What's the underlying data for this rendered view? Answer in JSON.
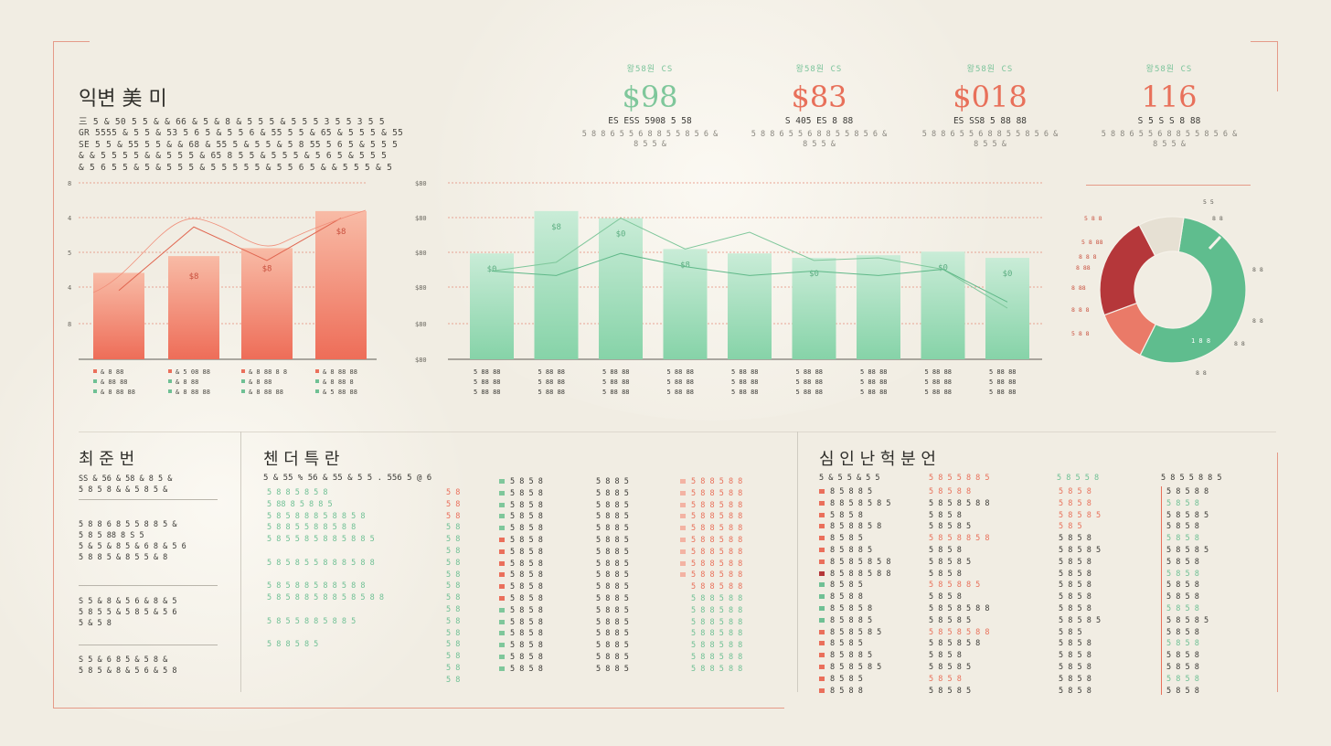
{
  "colors": {
    "red": "#ea6f5b",
    "green": "#8fd6b1",
    "accent_red_text": "#e8705a",
    "accent_green_text": "#7fc79b",
    "background": "#f1ede3"
  },
  "header": {
    "title": "익변 美 미",
    "intro_lines": [
      "三 5 & 50 5 5 & & 66 & 5 & 8 & 5 5 5 & 5 5 5 3 5 5 3 5 5",
      "GR 5555 & 5 5 & 53 5 6 5 & 5 5 6 & 55 5 5 & 65 & 5 5 5 & 55",
      "SE 5 5 & 55 5 5 & & 68 & 55 5 & 5 5 & 5 8 55 5 6 5 & 5 5 5",
      "& & 5 5 5 5 & & 5 5 5 & 65 8 5 5 & 5 5 5 & 5 6 5 & 5 5 5",
      "& 5 6 5 5 & 5 & 5 5 5 & 5 5 5 5 5 & 5 5 6 5 & & 5 5 5 & 5"
    ]
  },
  "kpis": [
    {
      "caption": "왕58원 CS",
      "value": "$98",
      "sub1": "ES ESS 5908 5 58",
      "sub2": "5 8 8 6 5 5 6 8 8 5 5 8 5 6 & 8 5 5 &",
      "color": "#7fc79b"
    },
    {
      "caption": "왕58원 CS",
      "value": "$83",
      "sub1": "S 405 ES 8 88",
      "sub2": "5 8 8 6 5 5 6 8 8 5 5 8 5 6 & 8 5 5 &",
      "color": "#e8705a"
    },
    {
      "caption": "왕58원 CS",
      "value": "$018",
      "sub1": "ES SS8 5 88 88",
      "sub2": "5 8 8 6 5 5 6 8 8 5 5 8 5 6 & 8 5 5 &",
      "color": "#e8705a"
    },
    {
      "caption": "왕58원 CS",
      "value": "116",
      "sub1": "S 5 S S 8 88",
      "sub2": "5 8 8 6 5 5 6 8 8 5 5 8 5 6 & 8 5 5 &",
      "color": "#e8705a"
    }
  ],
  "chart_data": [
    {
      "type": "bar",
      "categories": [
        "",
        "",
        "",
        ""
      ],
      "values": [
        98,
        117,
        126,
        168
      ],
      "line": [
        78,
        150,
        112,
        160
      ],
      "bar_labels": [
        "",
        "$8",
        "$8",
        "$8"
      ],
      "tick_labels": [
        "8",
        "4",
        "5",
        "4",
        "8"
      ],
      "legend": [
        [
          "& 8 88",
          "& 5 08 88",
          "& 8 88 8 8",
          "& 8 88 88"
        ],
        [
          "& 88 88",
          "& 8 88",
          "& 8 88",
          "& 8 88 8"
        ],
        [
          "& 8 88 88",
          "& 8 88 88",
          "& 8 88 88",
          "& 5 88 88"
        ]
      ]
    },
    {
      "type": "bar",
      "categories": [
        "",
        "",
        "",
        "",
        "",
        "",
        "",
        "",
        ""
      ],
      "values": [
        120,
        168,
        160,
        125,
        120,
        115,
        118,
        122,
        115
      ],
      "line_upper": [
        100,
        110,
        160,
        125,
        144,
        112,
        115,
        102,
        58
      ],
      "line_lower": [
        100,
        95,
        120,
        105,
        95,
        100,
        95,
        102,
        65
      ],
      "bar_labels": [
        "$0",
        "$8",
        "$0",
        "$8",
        "",
        "$0",
        "",
        "$0",
        "$0"
      ],
      "tick_labels": [
        "$80",
        "$80",
        "$80",
        "$80",
        "$80",
        "$80"
      ],
      "legend": [
        [
          "5 88 88",
          "5 88 88",
          "5 88 88",
          "5 88 88",
          "5 88 88",
          "5 88 88",
          "5 88 88",
          "5 88 88",
          "5 88 88"
        ],
        [
          "5 88 88",
          "5 88 88",
          "5 88 88",
          "5 88 88",
          "5 88 88",
          "5 88 88",
          "5 88 88",
          "5 88 88",
          "5 88 88"
        ],
        [
          "5 88 88",
          "5 88 88",
          "5 88 88",
          "5 88 88",
          "5 88 88",
          "5 88 88",
          "5 88 88",
          "5 88 88",
          "5 88 88"
        ]
      ]
    },
    {
      "type": "pie",
      "slices": [
        {
          "label": "Green",
          "value": 55,
          "color": "#5fbd8e"
        },
        {
          "label": "Light Red",
          "value": 12,
          "color": "#ea7a68"
        },
        {
          "label": "Dark Red",
          "value": 23,
          "color": "#b5373a"
        },
        {
          "label": "Pale",
          "value": 10,
          "color": "#e6e0d3"
        }
      ],
      "labels_left": [
        "5 8 8",
        "5 8 88",
        "8 8 8",
        "8 88",
        "8 88",
        "8 8 8",
        "5 8 8"
      ],
      "labels_right": [
        "5 5",
        "8 8",
        "8 8",
        "8 8",
        "8 8",
        "8 8"
      ]
    }
  ],
  "sections": {
    "left_title": "최 준 번",
    "middle_title": "첸 더 특 란",
    "right_title": "심 인 난 헉 분 언",
    "side_blocks": [
      [
        "SS & 56 & 58 & 8 5 &",
        "5 8 5 8 & & 5 8 5 &"
      ],
      [
        "5 8 8 6 8 5 5 8 8 5 &",
        "5 8 5 88 8 S 5",
        "5 & 5 & 8 5 & 6 8 & 5 6",
        "5 8 8 5 & 8 5 5 & 8"
      ],
      [
        "S 5 & 8 & 5 6 & 8 & 5",
        "5 8 5 5 & 5 8 5 & 5 6",
        "5 & 5 8"
      ],
      [
        "S 5 & 6 8 5 & 5 8 &",
        "5 8 5 & 8 & 5 6 & 5 8"
      ]
    ],
    "middle_header": "5 & 55 % 56 & 55 & 5 5 . 556 5 @ 6",
    "middle_col1": [
      "5 8 8 5 8 5 8",
      "5 88 8 5 8 8 5",
      "5 8 5 8 8 8 5 8 8 5 8",
      "5 8 8 5 5 8 8 5 8 8",
      "5 8 5 5 8 5 8 8 5 8 8 5",
      "",
      "5 8 5 8 5 5 8 8 8 5 8 8",
      "",
      "5 8 5 8 8 5 8 8 5 8 8",
      "5 8 5 8 8 5 8 8 5 8 5 8 8",
      "",
      "5 8 5 5 8 8 5 8 8 5",
      "",
      "5 8 8 5 8 5"
    ],
    "middle_col2": [
      "5 8",
      "5 8",
      "5 8",
      "5 8",
      "5 8",
      "5 8",
      "5 8",
      "5 8",
      "5 8",
      "5 8",
      "5 8",
      "5 8",
      "5 8",
      "5 8",
      "5 8",
      "5 8",
      "5 8"
    ],
    "middle_col3": [
      "5 8 5 8",
      "5 8 5 8",
      "5 8 5 8",
      "5 8 5 8",
      "5 8 5 8",
      "5 8 5 8",
      "5 8 5 8",
      "5 8 5 8",
      "5 8 5 8",
      "5 8 5 8",
      "5 8 5 8",
      "5 8 5 8",
      "5 8 5 8",
      "5 8 5 8",
      "5 8 5 8",
      "5 8 5 8",
      "5 8 5 8"
    ],
    "middle_col4": [
      "5 8 8 5",
      "5 8 8 5",
      "5 8 8 5",
      "5 8 8 5",
      "5 8 8 5",
      "5 8 8 5",
      "5 8 8 5",
      "5 8 8 5",
      "5 8 8 5",
      "5 8 8 5",
      "5 8 8 5",
      "5 8 8 5",
      "5 8 8 5",
      "5 8 8 5",
      "5 8 8 5",
      "5 8 8 5",
      "5 8 8 5"
    ],
    "middle_col5": [
      "5 8 8 5 8 8",
      "5 8 8 5 8 8",
      "5 8 8 5 8 8",
      "5 8 8 5 8 8",
      "5 8 8 5 8 8",
      "5 8 8 5 8 8",
      "5 8 8 5 8 8",
      "5 8 8 5 8 8",
      "5 8 8 5 8 8",
      "5 8 8 5 8 8",
      "5 8 8 5 8 8",
      "5 8 8 5 8 8",
      "5 8 8 5 8 8",
      "5 8 8 5 8 8",
      "5 8 8 5 8 8",
      "5 8 8 5 8 8",
      "5 8 8 5 8 8"
    ],
    "right_header_1": "5 & 5 5 & 5 5",
    "right_header_2": "5 8 5 5 8 8 5",
    "right_header_3": "5 8 5 5 8",
    "right_header_4": "5 8 5 5 8 8 5",
    "right_col1": [
      "8 5 8 8 5",
      "8 8 5 8 5 8 5",
      "5 8 5 8",
      "8 5 8 8 5 8",
      "8 5 8 5",
      "8 5 8 8 5",
      "8 5 8 5 8 5 8",
      "8 5 8 8 5 8 8",
      "8 5 8 5",
      "8 5 8 8",
      "8 5 8 5 8",
      "8 5 8 8 5",
      "8 5 8 5 8 5",
      "8 5 8 5",
      "8 5 8 8 5",
      "8 5 8 5 8 5",
      "8 5 8 5",
      "8 5 8 8"
    ],
    "right_col2": [
      "5 8 5 8 8",
      "5 8 5 8 5 8 8",
      "5 8 5 8",
      "5 8 5 8 5",
      "5 8 5 8 8 5 8",
      "5 8 5 8",
      "5 8 5 8 5",
      "5 8 5 8",
      "5 8 5 8 8 5",
      "5 8 5 8",
      "5 8 5 8 5 8 8",
      "5 8 5 8 5",
      "5 8 5 8 5 8 8",
      "5 8 5 8 5 8",
      "5 8 5 8",
      "5 8 5 8 5",
      "5 8 5 8",
      "5 8 5 8 5"
    ],
    "right_col3": [
      "5 8 5 8",
      "5 8 5 8",
      "5 8 5 8 5",
      "5 8 5",
      "5 8 5 8",
      "5 8 5 8 5",
      "5 8 5 8",
      "5 8 5 8",
      "5 8 5 8",
      "5 8 5 8",
      "5 8 5 8",
      "5 8 5 8 5",
      "5 8 5",
      "5 8 5 8",
      "5 8 5 8",
      "5 8 5 8",
      "5 8 5 8",
      "5 8 5 8"
    ],
    "right_col4": [
      "5 8 5 8 8",
      "5 8 5 8",
      "5 8 5 8 5",
      "5 8 5 8",
      "5 8 5 8",
      "5 8 5 8 5",
      "5 8 5 8",
      "5 8 5 8",
      "5 8 5 8",
      "5 8 5 8",
      "5 8 5 8",
      "5 8 5 8 5",
      "5 8 5 8",
      "5 8 5 8",
      "5 8 5 8",
      "5 8 5 8",
      "5 8 5 8",
      "5 8 5 8"
    ]
  }
}
